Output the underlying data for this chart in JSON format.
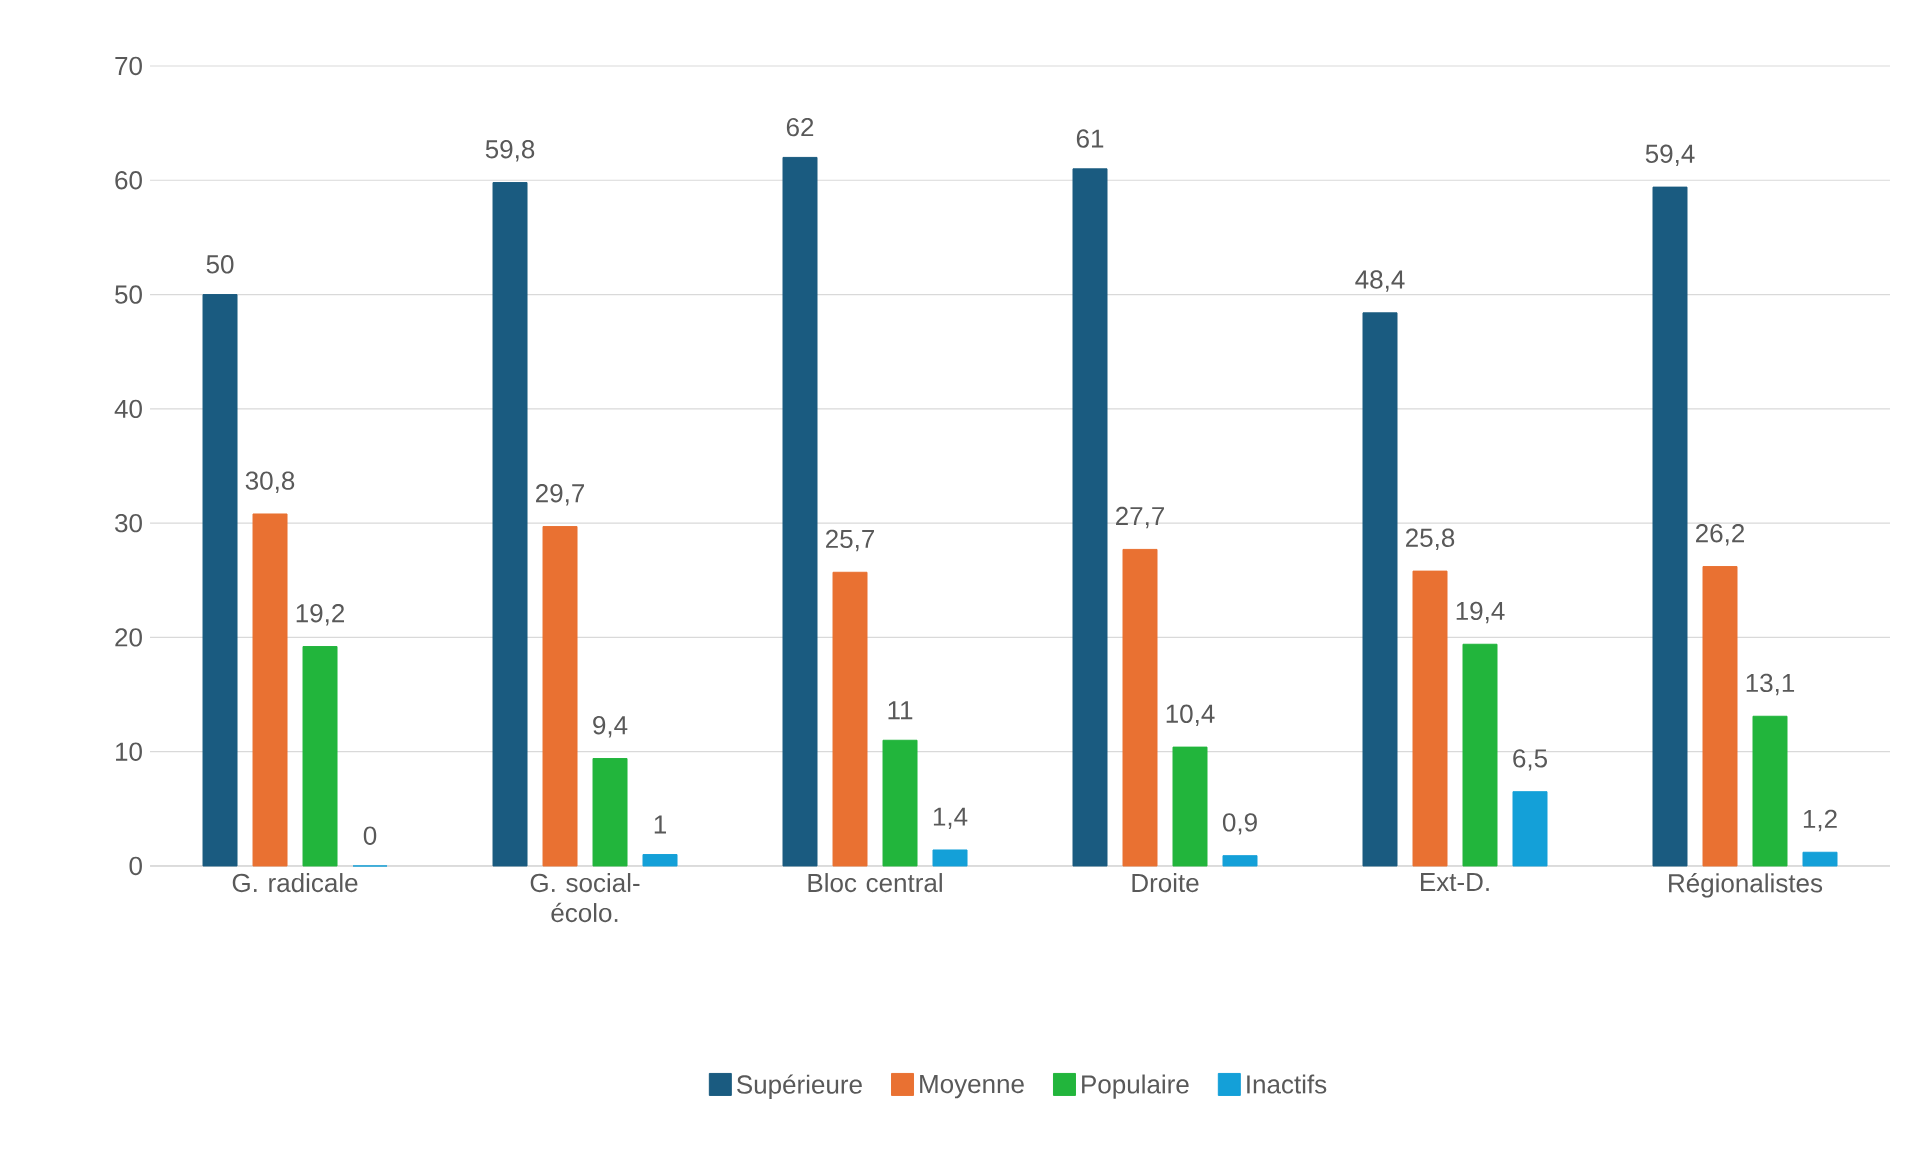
{
  "chart_data": {
    "type": "bar",
    "categories": [
      "G. radicale",
      "G. social-écolo.",
      "Bloc central",
      "Droite",
      "Ext-D.",
      "Régionalistes"
    ],
    "series": [
      {
        "name": "Supérieure",
        "color": "#1a5b80",
        "values": [
          50,
          59.8,
          62,
          61,
          48.4,
          59.4
        ],
        "value_labels": [
          "50",
          "59,8",
          "62",
          "61",
          "48,4",
          "59,4"
        ]
      },
      {
        "name": "Moyenne",
        "color": "#e97132",
        "values": [
          30.8,
          29.7,
          25.7,
          27.7,
          25.8,
          26.2
        ],
        "value_labels": [
          "30,8",
          "29,7",
          "25,7",
          "27,7",
          "25,8",
          "26,2"
        ]
      },
      {
        "name": "Populaire",
        "color": "#22b53c",
        "values": [
          19.2,
          9.4,
          11,
          10.4,
          19.4,
          13.1
        ],
        "value_labels": [
          "19,2",
          "9,4",
          "11",
          "10,4",
          "19,4",
          "13,1"
        ]
      },
      {
        "name": "Inactifs",
        "color": "#14a0d8",
        "values": [
          0,
          1,
          1.4,
          0.9,
          6.5,
          1.2
        ],
        "value_labels": [
          "0",
          "1",
          "1,4",
          "0,9",
          "6,5",
          "1,2"
        ]
      }
    ],
    "ylim": [
      0,
      70
    ],
    "yticks": [
      0,
      10,
      20,
      30,
      40,
      50,
      60,
      70
    ],
    "grid": "y",
    "legend": "bottom"
  }
}
